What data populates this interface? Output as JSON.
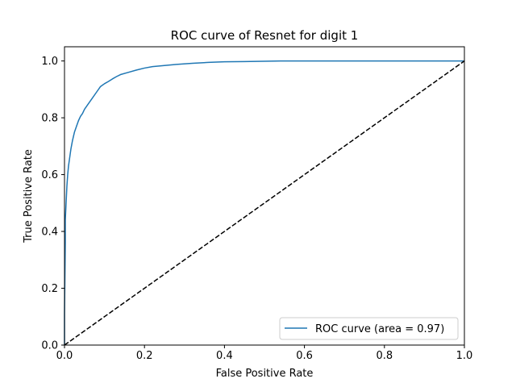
{
  "chart_data": {
    "type": "line",
    "title": "ROC curve of Resnet for digit 1",
    "xlabel": "False Positive Rate",
    "ylabel": "True Positive Rate",
    "xlim": [
      0.0,
      1.0
    ],
    "ylim": [
      0.0,
      1.05
    ],
    "xticks": [
      0.0,
      0.2,
      0.4,
      0.6,
      0.8,
      1.0
    ],
    "xtick_labels": [
      "0.0",
      "0.2",
      "0.4",
      "0.6",
      "0.8",
      "1.0"
    ],
    "yticks": [
      0.0,
      0.2,
      0.4,
      0.6,
      0.8,
      1.0
    ],
    "ytick_labels": [
      "0.0",
      "0.2",
      "0.4",
      "0.6",
      "0.8",
      "1.0"
    ],
    "grid": false,
    "legend_position": "lower-right",
    "series": [
      {
        "name": "ROC curve (area = 0.97)",
        "color": "#1f77b4",
        "style": "solid",
        "x": [
          0.0,
          0.0,
          0.002,
          0.002,
          0.004,
          0.006,
          0.008,
          0.01,
          0.013,
          0.016,
          0.02,
          0.025,
          0.03,
          0.035,
          0.04,
          0.045,
          0.05,
          0.06,
          0.07,
          0.08,
          0.09,
          0.1,
          0.11,
          0.12,
          0.13,
          0.14,
          0.16,
          0.18,
          0.2,
          0.22,
          0.25,
          0.28,
          0.32,
          0.36,
          0.4,
          0.45,
          0.54,
          0.6,
          0.7,
          0.8,
          0.9,
          1.0
        ],
        "y": [
          0.0,
          0.11,
          0.36,
          0.44,
          0.5,
          0.56,
          0.6,
          0.63,
          0.66,
          0.69,
          0.72,
          0.75,
          0.77,
          0.79,
          0.805,
          0.815,
          0.83,
          0.85,
          0.87,
          0.89,
          0.91,
          0.92,
          0.928,
          0.937,
          0.945,
          0.952,
          0.96,
          0.968,
          0.975,
          0.98,
          0.984,
          0.988,
          0.992,
          0.995,
          0.997,
          0.998,
          1.0,
          1.0,
          1.0,
          1.0,
          1.0,
          1.0
        ]
      },
      {
        "name": "",
        "color": "#000000",
        "style": "dashed",
        "x": [
          0.0,
          1.0
        ],
        "y": [
          0.0,
          1.0
        ]
      }
    ]
  }
}
